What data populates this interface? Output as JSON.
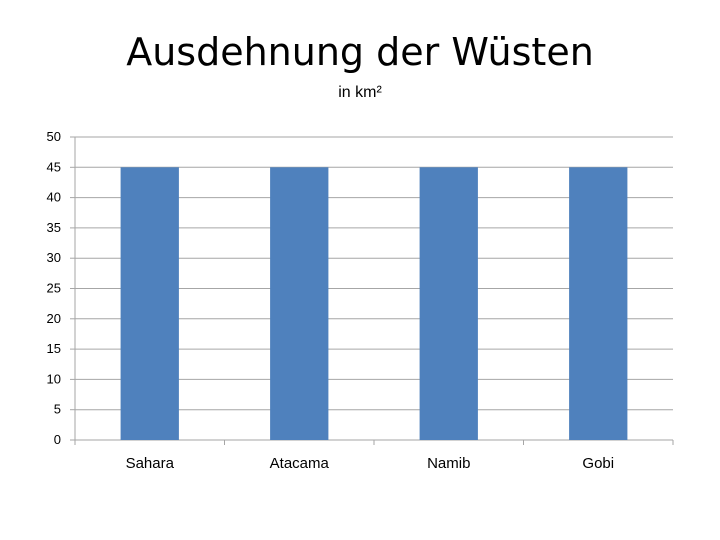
{
  "chart_data": {
    "type": "bar",
    "title": "Ausdehnung der Wüsten",
    "subtitle": "in km²",
    "categories": [
      "Sahara",
      "Atacama",
      "Namib",
      "Gobi"
    ],
    "values": [
      45,
      45,
      45,
      45
    ],
    "ylim": [
      0,
      50
    ],
    "yticks": [
      0,
      5,
      10,
      15,
      20,
      25,
      30,
      35,
      40,
      45,
      50
    ],
    "grid": true,
    "bar_color": "#4f81bd",
    "grid_color": "#a6a6a6"
  }
}
